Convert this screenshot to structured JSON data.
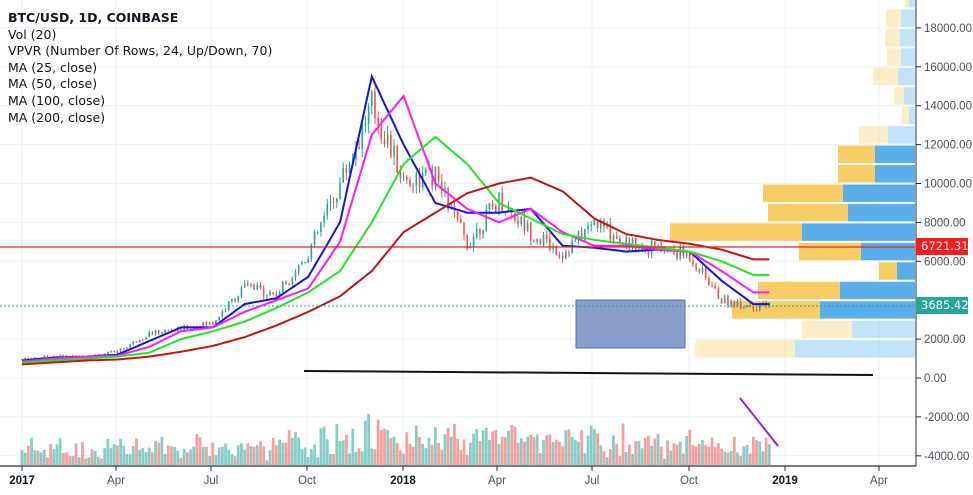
{
  "legend": {
    "title": "BTC/USD, 1D, COINBASE",
    "indicators": [
      "Vol (20)",
      "VPVR (Number Of Rows, 24, Up/Down, 70)",
      "MA (25, close)",
      "MA (50, close)",
      "MA (100, close)",
      "MA (200, close)"
    ]
  },
  "price_tags": {
    "horizontal_line": {
      "value": "6721.31",
      "color": "#ff1a1a"
    },
    "last_price": {
      "value": "3685.42",
      "color": "#26a69a"
    }
  },
  "colors": {
    "ma25": "#1515d6",
    "ma50": "#ff19ff",
    "ma100": "#22e622",
    "ma200": "#c41515",
    "up": "#26a69a",
    "down": "#ef5350",
    "vpvr_up": "#5aaeea",
    "vpvr_down": "#f9cd66",
    "rect": "#7f93c9",
    "trend": "#9c1fe6"
  },
  "chart_data": {
    "type": "line",
    "title": "BTC/USD, 1D, COINBASE",
    "xlabel": "",
    "ylabel": "",
    "x_ticks": [
      "2017",
      "Apr",
      "Jul",
      "Oct",
      "2018",
      "Apr",
      "Jul",
      "Oct",
      "2019",
      "Apr"
    ],
    "y_ticks": [
      18000,
      16000,
      14000,
      12000,
      10000,
      8000,
      6000,
      2000,
      0,
      -2000,
      -4000
    ],
    "ylim": [
      -4600,
      19500
    ],
    "grid": true,
    "annotations": {
      "horizontal_line": 6721.31,
      "last_price": 3685.42,
      "rectangle": {
        "x_start": "2018-06-01",
        "x_end": "2018-09-25",
        "y_top": 4000,
        "y_bottom": 1500
      },
      "trendline": {
        "x_start": "2017-10-01",
        "x_end": "2019-04-05",
        "y_start": 350,
        "y_end": 200
      },
      "volume_trendline": {
        "x_start": "2018-11-14",
        "x_end": "2018-12-15"
      }
    },
    "x": [
      "2017-01",
      "2017-02",
      "2017-03",
      "2017-04",
      "2017-05",
      "2017-06",
      "2017-07",
      "2017-08",
      "2017-09",
      "2017-10",
      "2017-11",
      "2017-12",
      "2018-01",
      "2018-02",
      "2018-03",
      "2018-04",
      "2018-05",
      "2018-06",
      "2018-07",
      "2018-08",
      "2018-09",
      "2018-10",
      "2018-11",
      "2018-12"
    ],
    "series": [
      {
        "name": "BTC close (approx monthly)",
        "values": [
          970,
          1150,
          1080,
          1350,
          2300,
          2500,
          2850,
          4700,
          4300,
          6400,
          10000,
          14000,
          10200,
          10300,
          6900,
          9200,
          7500,
          6400,
          8000,
          7000,
          6600,
          6300,
          4000,
          3685
        ]
      },
      {
        "name": "MA (25, close)",
        "values": [
          900,
          1050,
          1100,
          1200,
          1900,
          2600,
          2600,
          3800,
          4100,
          5200,
          8000,
          15500,
          12000,
          9000,
          8500,
          8500,
          8700,
          6800,
          6700,
          6500,
          6600,
          6500,
          5000,
          3800
        ]
      },
      {
        "name": "MA (50, close)",
        "values": [
          850,
          1000,
          1100,
          1150,
          1600,
          2400,
          2600,
          3400,
          4000,
          4600,
          7000,
          12500,
          14500,
          10000,
          8700,
          8000,
          8700,
          7500,
          6800,
          6800,
          6600,
          6500,
          5500,
          4400
        ]
      },
      {
        "name": "MA (100, close)",
        "values": [
          800,
          900,
          1000,
          1100,
          1300,
          2000,
          2400,
          2900,
          3600,
          4400,
          5500,
          8000,
          11000,
          12400,
          11000,
          9000,
          8200,
          7400,
          7100,
          6900,
          6700,
          6500,
          6000,
          5300
        ]
      },
      {
        "name": "MA (200, close)",
        "values": [
          700,
          800,
          900,
          950,
          1100,
          1350,
          1650,
          2100,
          2700,
          3400,
          4200,
          5500,
          7500,
          8500,
          9500,
          10000,
          10300,
          9600,
          8200,
          7400,
          7100,
          6900,
          6600,
          6100
        ]
      }
    ],
    "vpvr_rows": [
      {
        "price_low": 1000,
        "price_high": 2000,
        "up_width": 120,
        "down_width": 100
      },
      {
        "price_low": 2000,
        "price_high": 3000,
        "up_width": 63,
        "down_width": 50
      },
      {
        "price_low": 3000,
        "price_high": 4000,
        "up_width": 95,
        "down_width": 88
      },
      {
        "price_low": 4000,
        "price_high": 5000,
        "up_width": 75,
        "down_width": 82
      },
      {
        "price_low": 5000,
        "price_high": 6000,
        "up_width": 18,
        "down_width": 18
      },
      {
        "price_low": 6000,
        "price_high": 7000,
        "up_width": 54,
        "down_width": 62
      },
      {
        "price_low": 7000,
        "price_high": 8000,
        "up_width": 113,
        "down_width": 132
      },
      {
        "price_low": 8000,
        "price_high": 9000,
        "up_width": 67,
        "down_width": 80
      },
      {
        "price_low": 9000,
        "price_high": 10000,
        "up_width": 72,
        "down_width": 80
      },
      {
        "price_low": 10000,
        "price_high": 11000,
        "up_width": 40,
        "down_width": 37
      },
      {
        "price_low": 11000,
        "price_high": 12000,
        "up_width": 40,
        "down_width": 37
      },
      {
        "price_low": 12000,
        "price_high": 13000,
        "up_width": 27,
        "down_width": 29
      },
      {
        "price_low": 13000,
        "price_high": 14000,
        "up_width": 6,
        "down_width": 7
      },
      {
        "price_low": 14000,
        "price_high": 15000,
        "up_width": 11,
        "down_width": 10
      },
      {
        "price_low": 15000,
        "price_high": 16000,
        "up_width": 17,
        "down_width": 25
      },
      {
        "price_low": 16000,
        "price_high": 17000,
        "up_width": 14,
        "down_width": 14
      },
      {
        "price_low": 17000,
        "price_high": 18000,
        "up_width": 15,
        "down_width": 15
      },
      {
        "price_low": 18000,
        "price_high": 19000,
        "up_width": 14,
        "down_width": 15
      },
      {
        "price_low": 19000,
        "price_high": 20000,
        "up_width": 6,
        "down_width": 4
      }
    ]
  }
}
